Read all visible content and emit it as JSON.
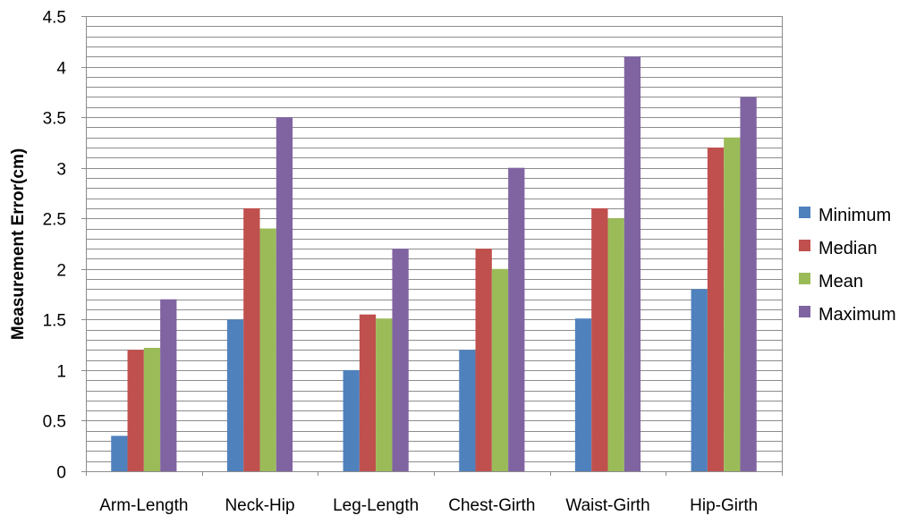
{
  "chart_data": {
    "type": "bar",
    "title": "",
    "xlabel": "",
    "ylabel": "Measurement Error(cm)",
    "ylim": [
      0,
      4.5
    ],
    "y_ticks": [
      0,
      0.5,
      1,
      1.5,
      2,
      2.5,
      3,
      3.5,
      4,
      4.5
    ],
    "y_tick_labels": [
      "0",
      "0.5",
      "1",
      "1.5",
      "2",
      "2.5",
      "3",
      "3.5",
      "4",
      "4.5"
    ],
    "minor_grid_step": 0.1,
    "grid": true,
    "legend_position": "right",
    "categories": [
      "Arm-Length",
      "Neck-Hip",
      "Leg-Length",
      "Chest-Girth",
      "Waist-Girth",
      "Hip-Girth"
    ],
    "series": [
      {
        "name": "Minimum",
        "color": "#4F81BD",
        "values": [
          0.35,
          1.5,
          1.0,
          1.2,
          1.51,
          1.8
        ]
      },
      {
        "name": "Median",
        "color": "#C0504D",
        "values": [
          1.2,
          2.6,
          1.55,
          2.2,
          2.6,
          3.2
        ]
      },
      {
        "name": "Mean",
        "color": "#9BBB59",
        "values": [
          1.22,
          2.4,
          1.51,
          2.0,
          2.5,
          3.3
        ]
      },
      {
        "name": "Maximum",
        "color": "#8064A2",
        "values": [
          1.7,
          3.5,
          2.2,
          3.0,
          4.1,
          3.7
        ]
      }
    ]
  }
}
